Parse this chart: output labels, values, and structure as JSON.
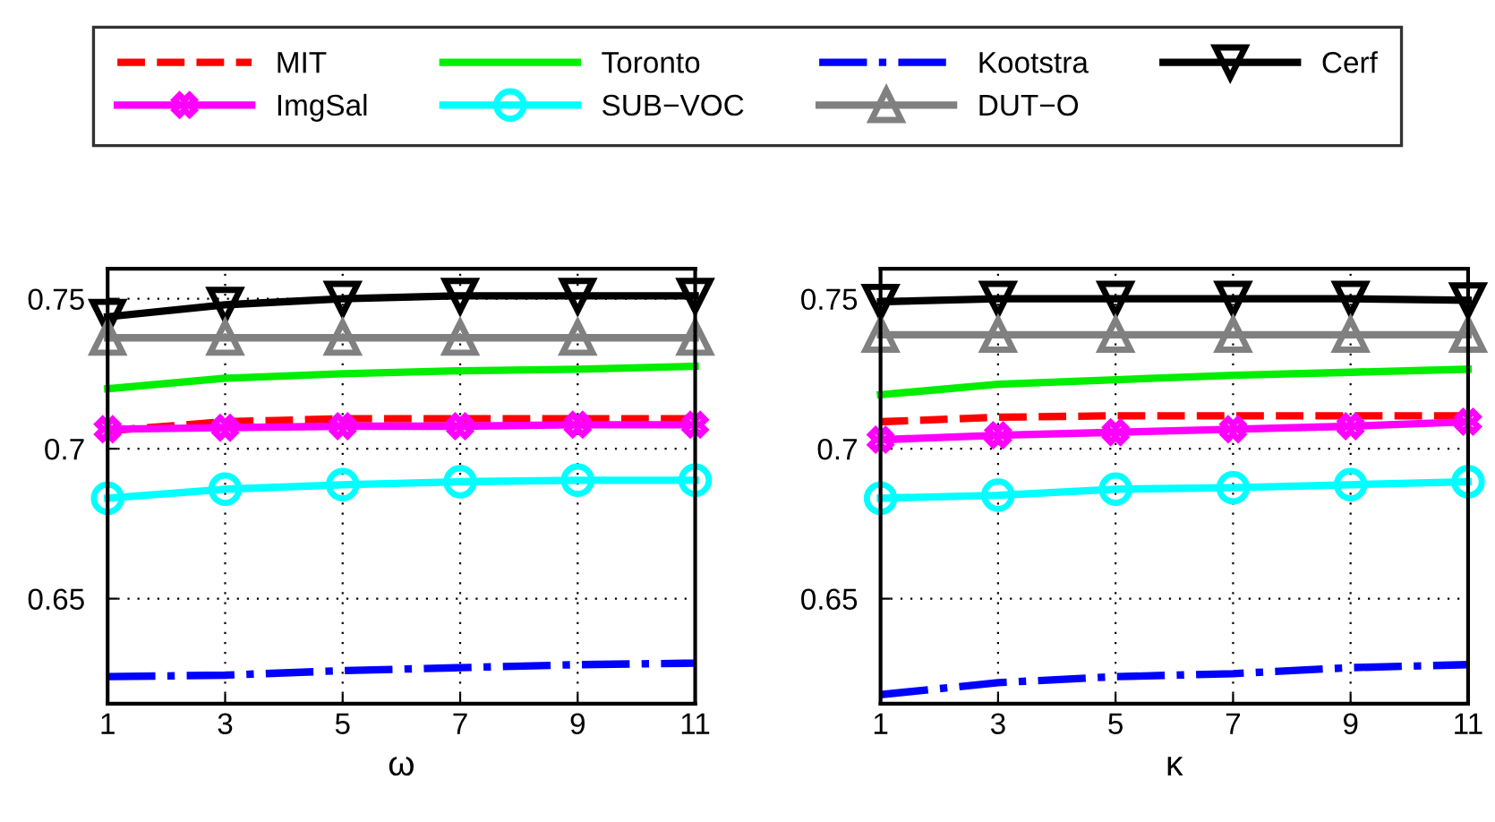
{
  "chart_data": [
    {
      "type": "line",
      "xlabel": "ω",
      "x": [
        1,
        3,
        5,
        7,
        9,
        11
      ],
      "xlim": [
        1,
        11
      ],
      "xticks": [
        1,
        3,
        5,
        7,
        9,
        11
      ],
      "ylim": [
        0.615,
        0.76
      ],
      "yticks": [
        0.65,
        0.7,
        0.75
      ],
      "grid": true,
      "legend": "top",
      "series": [
        {
          "name": "MIT",
          "color": "#ff0000",
          "line_style": "dashed",
          "marker": "none",
          "values": [
            0.706,
            0.709,
            0.71,
            0.71,
            0.71,
            0.71
          ]
        },
        {
          "name": "Toronto",
          "color": "#00ee00",
          "line_style": "solid",
          "marker": "none",
          "values": [
            0.72,
            0.7235,
            0.725,
            0.726,
            0.7265,
            0.7275
          ]
        },
        {
          "name": "Kootstra",
          "color": "#0000ff",
          "line_style": "dashdot",
          "marker": "none",
          "values": [
            0.624,
            0.6245,
            0.626,
            0.627,
            0.628,
            0.6285
          ]
        },
        {
          "name": "Cerf",
          "color": "#000000",
          "line_style": "solid",
          "marker": "triangle_down",
          "values": [
            0.744,
            0.748,
            0.75,
            0.751,
            0.751,
            0.751
          ]
        },
        {
          "name": "ImgSal",
          "color": "#ff00ff",
          "line_style": "solid",
          "marker": "cross",
          "values": [
            0.7065,
            0.707,
            0.7075,
            0.7075,
            0.708,
            0.708
          ]
        },
        {
          "name": "SUB−VOC",
          "color": "#00ffff",
          "line_style": "solid",
          "marker": "circle",
          "values": [
            0.6835,
            0.6865,
            0.688,
            0.689,
            0.6895,
            0.6895
          ]
        },
        {
          "name": "DUT−O",
          "color": "#808080",
          "line_style": "solid",
          "marker": "triangle",
          "values": [
            0.737,
            0.737,
            0.737,
            0.737,
            0.737,
            0.737
          ]
        }
      ]
    },
    {
      "type": "line",
      "xlabel": "κ",
      "x": [
        1,
        3,
        5,
        7,
        9,
        11
      ],
      "xlim": [
        1,
        11
      ],
      "xticks": [
        1,
        3,
        5,
        7,
        9,
        11
      ],
      "ylim": [
        0.615,
        0.76
      ],
      "yticks": [
        0.65,
        0.7,
        0.75
      ],
      "grid": true,
      "series": [
        {
          "color": "#ff0000",
          "line_style": "dashed",
          "marker": "none",
          "values": [
            0.709,
            0.7105,
            0.711,
            0.711,
            0.711,
            0.711
          ]
        },
        {
          "color": "#00ee00",
          "line_style": "solid",
          "marker": "none",
          "values": [
            0.718,
            0.7215,
            0.723,
            0.7245,
            0.7255,
            0.7265
          ]
        },
        {
          "color": "#0000ff",
          "line_style": "dashdot",
          "marker": "none",
          "values": [
            0.618,
            0.622,
            0.624,
            0.625,
            0.627,
            0.628
          ]
        },
        {
          "color": "#000000",
          "line_style": "solid",
          "marker": "triangle_down",
          "values": [
            0.749,
            0.75,
            0.75,
            0.75,
            0.75,
            0.7495
          ]
        },
        {
          "color": "#ff00ff",
          "line_style": "solid",
          "marker": "cross",
          "values": [
            0.703,
            0.7045,
            0.7055,
            0.7065,
            0.7075,
            0.709
          ]
        },
        {
          "color": "#00ffff",
          "line_style": "solid",
          "marker": "circle",
          "values": [
            0.6835,
            0.6845,
            0.6865,
            0.687,
            0.688,
            0.689
          ]
        },
        {
          "color": "#808080",
          "line_style": "solid",
          "marker": "triangle",
          "values": [
            0.738,
            0.738,
            0.738,
            0.738,
            0.738,
            0.738
          ]
        }
      ]
    }
  ]
}
